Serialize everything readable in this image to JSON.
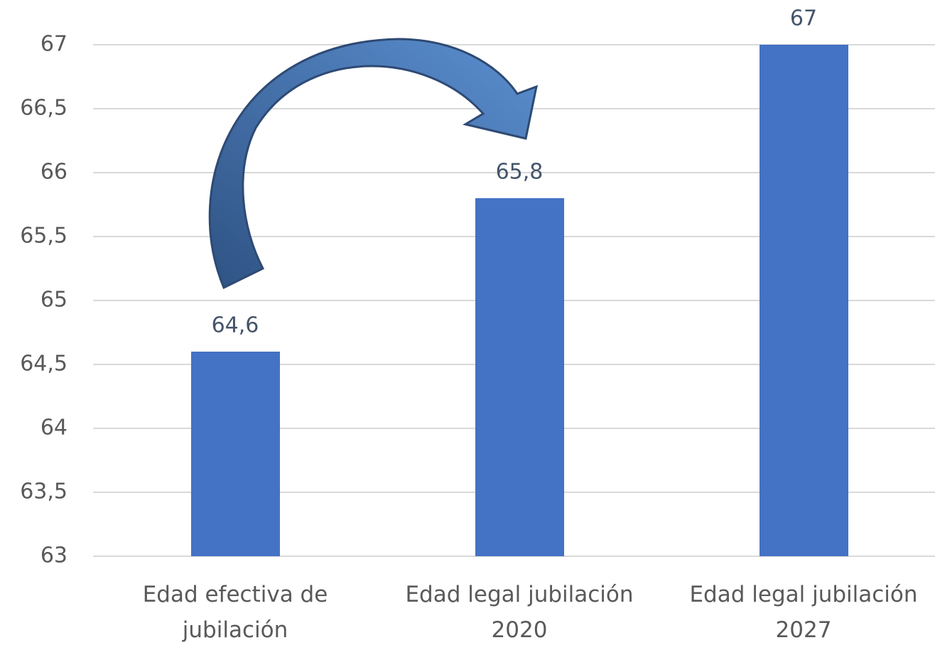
{
  "chart_data": {
    "type": "bar",
    "categories": [
      "Edad efectiva de jubilación",
      "Edad legal jubilación 2020",
      "Edad legal jubilación 2027"
    ],
    "values": [
      64.6,
      65.8,
      67
    ],
    "value_labels": [
      "64,6",
      "65,8",
      "67"
    ],
    "color": "#4472c4",
    "ylim": [
      63,
      67
    ],
    "yticks": [
      63,
      {
        "value": 63.5,
        "label": "63,5"
      },
      64,
      {
        "value": 64.5,
        "label": "64,5"
      },
      65,
      {
        "value": 65.5,
        "label": "65,5"
      },
      66,
      {
        "value": 66.5,
        "label": "66,5"
      },
      67
    ],
    "grid": true
  }
}
